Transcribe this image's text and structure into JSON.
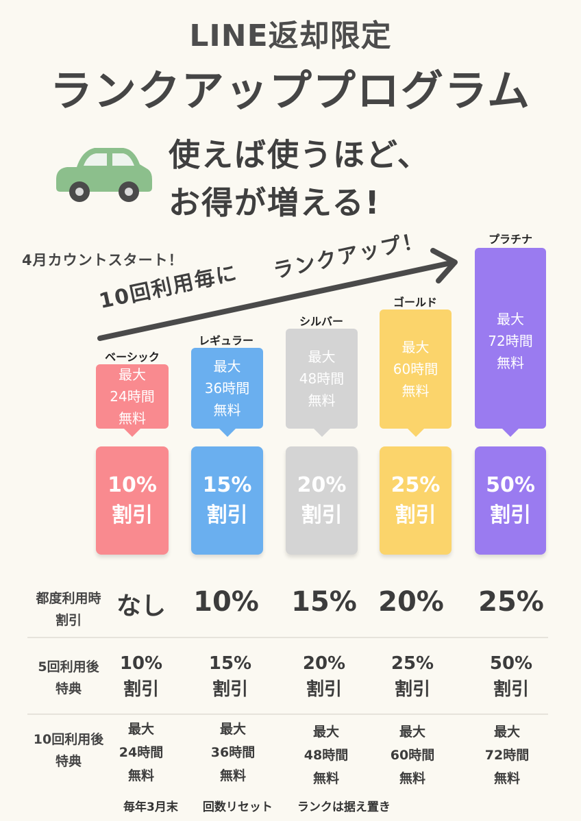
{
  "header": {
    "line1": "LINE返却限定",
    "line2": "ランクアッププログラム"
  },
  "tagline": {
    "line1": "使えば使うほど、",
    "line2": "お得が増える!"
  },
  "arrow": {
    "count_start": "4月カウントスタート！",
    "text_left": "10回利用毎に",
    "text_right": "ランクアップ！"
  },
  "colors": {
    "basic": "#f98a8f",
    "regular": "#6aafef",
    "silver": "#d4d4d4",
    "gold": "#fbd46b",
    "platinum": "#9a7bf0",
    "car": "#8cbf8c"
  },
  "ranks": [
    {
      "name": "ベーシック",
      "free_max": "最大",
      "free_hours": "24時間",
      "free_label": "無料",
      "discount_pct": "10%",
      "discount_label": "割引"
    },
    {
      "name": "レギュラー",
      "free_max": "最大",
      "free_hours": "36時間",
      "free_label": "無料",
      "discount_pct": "15%",
      "discount_label": "割引"
    },
    {
      "name": "シルバー",
      "free_max": "最大",
      "free_hours": "48時間",
      "free_label": "無料",
      "discount_pct": "20%",
      "discount_label": "割引"
    },
    {
      "name": "ゴールド",
      "free_max": "最大",
      "free_hours": "60時間",
      "free_label": "無料",
      "discount_pct": "25%",
      "discount_label": "割引"
    },
    {
      "name": "プラチナ",
      "free_max": "最大",
      "free_hours": "72時間",
      "free_label": "無料",
      "discount_pct": "50%",
      "discount_label": "割引"
    }
  ],
  "table": {
    "row1": {
      "label1": "都度利用時",
      "label2": "割引",
      "values": [
        "なし",
        "10%",
        "15%",
        "20%",
        "25%"
      ]
    },
    "row2": {
      "label1": "5回利用後",
      "label2": "特典",
      "values": [
        [
          "10%",
          "割引"
        ],
        [
          "15%",
          "割引"
        ],
        [
          "20%",
          "割引"
        ],
        [
          "25%",
          "割引"
        ],
        [
          "50%",
          "割引"
        ]
      ]
    },
    "row3": {
      "label1": "10回利用後",
      "label2": "特典",
      "values": [
        [
          "最大",
          "24時間",
          "無料"
        ],
        [
          "最大",
          "36時間",
          "無料"
        ],
        [
          "最大",
          "48時間",
          "無料"
        ],
        [
          "最大",
          "60時間",
          "無料"
        ],
        [
          "最大",
          "72時間",
          "無料"
        ]
      ]
    }
  },
  "footer": {
    "part1": "毎年3月末",
    "part2": "回数リセット",
    "part3": "ランクは据え置き"
  }
}
